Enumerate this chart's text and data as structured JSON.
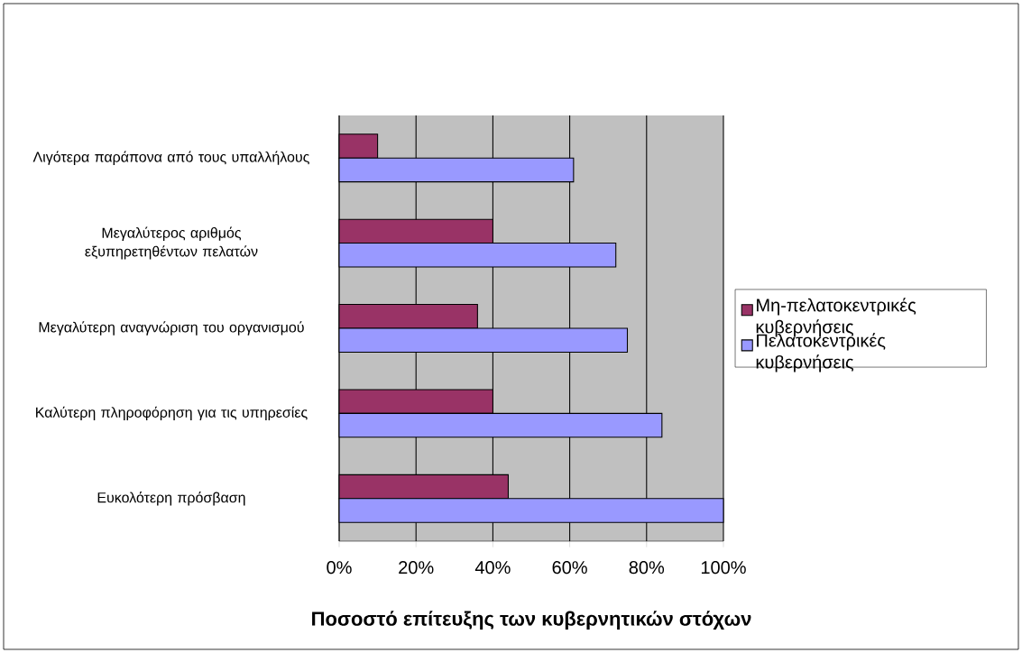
{
  "chart_data": {
    "type": "bar",
    "orientation": "horizontal",
    "xlabel": "Ποσοστό επίτευξης των κυβερνητικών στόχων",
    "categories": [
      "Λιγότερα παράπονα από τους υπαλλήλους",
      "Μεγαλύτερος αριθμός εξυπηρετηθέντων πελατών",
      "Μεγαλύτερη αναγνώριση του οργανισμού",
      "Καλύτερη πληροφόρηση για τις υπηρεσίες",
      "Ευκολότερη πρόσβαση"
    ],
    "series": [
      {
        "name": "Μη-πελατοκεντρικές κυβερνήσεις",
        "color": "#993366",
        "values": [
          10,
          40,
          36,
          40,
          44
        ]
      },
      {
        "name": "Πελατοκεντρικές κυβερνήσεις",
        "color": "#9999ff",
        "values": [
          61,
          72,
          75,
          84,
          100
        ]
      }
    ],
    "xlim": [
      0,
      100
    ],
    "xticks": [
      {
        "value": 0,
        "label": "0%"
      },
      {
        "value": 20,
        "label": "20%"
      },
      {
        "value": 40,
        "label": "40%"
      },
      {
        "value": 60,
        "label": "60%"
      },
      {
        "value": 80,
        "label": "80%"
      },
      {
        "value": 100,
        "label": "100%"
      }
    ],
    "grid": "x",
    "legend": "right"
  }
}
